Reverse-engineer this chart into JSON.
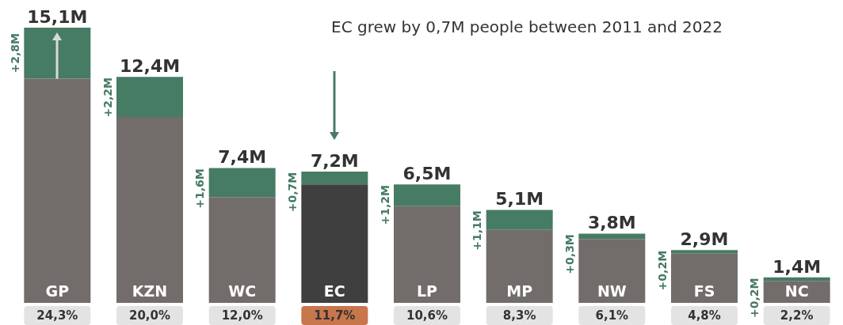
{
  "chart_data": {
    "type": "bar",
    "title": "EC grew by 0,7M people between 2011 and 2022",
    "categories": [
      "GP",
      "KZN",
      "WC",
      "EC",
      "LP",
      "MP",
      "NW",
      "FS",
      "NC"
    ],
    "stacked": true,
    "series": [
      {
        "color": "#726d6b",
        "colors": [
          "#726d6b",
          "#726d6b",
          "#726d6b",
          "#3f3f3f",
          "#726d6b",
          "#726d6b",
          "#726d6b",
          "#726d6b",
          "#726d6b"
        ],
        "values": [
          12.3,
          10.2,
          5.8,
          6.5,
          5.3,
          4.0,
          3.5,
          2.7,
          1.2
        ]
      },
      {
        "color": "#467b64",
        "values": [
          2.8,
          2.2,
          1.6,
          0.7,
          1.2,
          1.1,
          0.3,
          0.2,
          0.2
        ],
        "value_labels": [
          "+2,8M",
          "+2,2M",
          "+1,6M",
          "+0,7M",
          "+1,2M",
          "+1,1M",
          "+0,3M",
          "+0,2M",
          "+0,2M"
        ]
      }
    ],
    "totals": [
      "15,1M",
      "12,4M",
      "7,4M",
      "7,2M",
      "6,5M",
      "5,1M",
      "3,8M",
      "2,9M",
      "1,4M"
    ],
    "annotations": [
      "24,3%",
      "20,0%",
      "12,0%",
      "11,7%",
      "10,6%",
      "8,3%",
      "6,1%",
      "4,8%",
      "2,2%"
    ]
  }
}
